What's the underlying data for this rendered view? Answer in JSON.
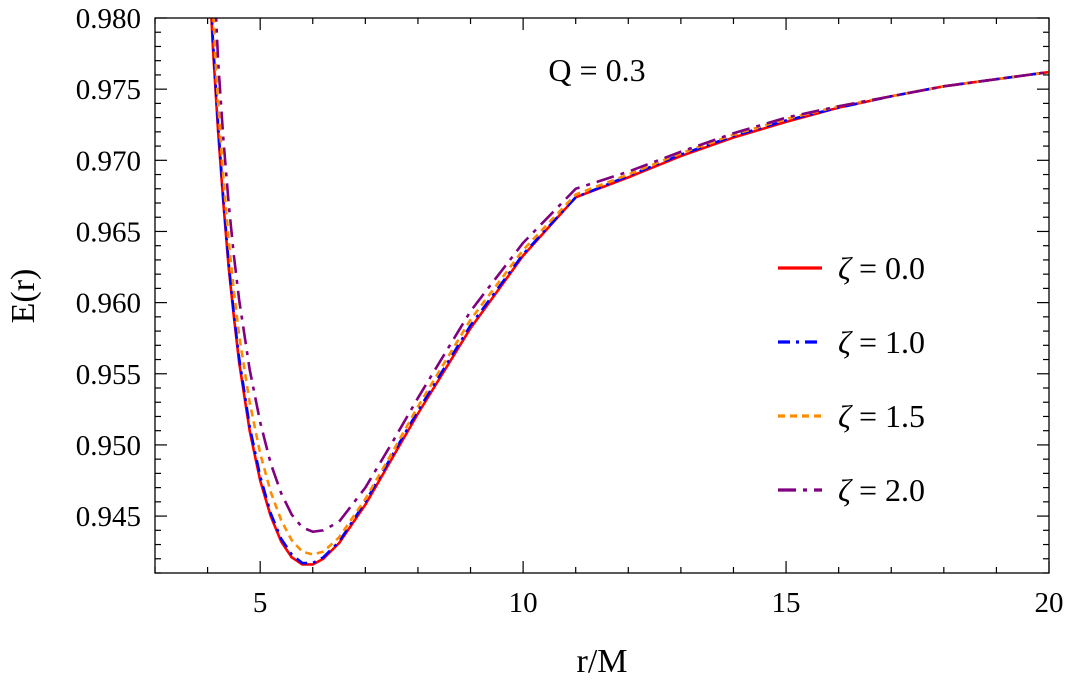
{
  "chart_data": {
    "type": "line",
    "title": "",
    "xlabel": "r/M",
    "ylabel": "E(r)",
    "xlim": [
      3.0,
      20.0
    ],
    "ylim": [
      0.941,
      0.98
    ],
    "x_ticks": [
      5,
      10,
      15,
      20
    ],
    "x_tick_labels": [
      "5",
      "10",
      "15",
      "20"
    ],
    "y_ticks": [
      0.945,
      0.95,
      0.955,
      0.96,
      0.965,
      0.97,
      0.975,
      0.98
    ],
    "y_tick_labels": [
      "0.945",
      "0.950",
      "0.955",
      "0.960",
      "0.965",
      "0.970",
      "0.975",
      "0.980"
    ],
    "annotation": "Q = 0.3",
    "legend_position": "right",
    "grid": false,
    "series": [
      {
        "name": "ζ = 0.0",
        "symbol": "ζ",
        "value_label": " = 0.0",
        "color": "#ff0000",
        "dash": "solid",
        "x": [
          4.06,
          4.1,
          4.2,
          4.3,
          4.4,
          4.5,
          4.6,
          4.8,
          5.0,
          5.2,
          5.4,
          5.6,
          5.8,
          6.0,
          6.2,
          6.5,
          7.0,
          7.5,
          8.0,
          9.0,
          10.0,
          11.0,
          12.0,
          13.0,
          14.0,
          15.0,
          16.0,
          17.0,
          18.0,
          19.0,
          20.0
        ],
        "y": [
          0.981,
          0.978,
          0.972,
          0.967,
          0.9625,
          0.959,
          0.9558,
          0.951,
          0.9475,
          0.945,
          0.9432,
          0.9421,
          0.9416,
          0.9416,
          0.942,
          0.9431,
          0.9458,
          0.949,
          0.9522,
          0.9582,
          0.9633,
          0.9674,
          0.9688,
          0.9703,
          0.9716,
          0.9727,
          0.9737,
          0.9745,
          0.9752,
          0.9757,
          0.9762
        ]
      },
      {
        "name": "ζ = 1.0",
        "symbol": "ζ",
        "value_label": " = 1.0",
        "color": "#0000ff",
        "dash": "dash-dot",
        "x": [
          4.07,
          4.1,
          4.2,
          4.3,
          4.4,
          4.5,
          4.6,
          4.8,
          5.0,
          5.2,
          5.4,
          5.6,
          5.8,
          6.0,
          6.2,
          6.5,
          7.0,
          7.5,
          8.0,
          9.0,
          10.0,
          11.0,
          12.0,
          13.0,
          14.0,
          15.0,
          16.0,
          17.0,
          18.0,
          19.0,
          20.0
        ],
        "y": [
          0.981,
          0.9785,
          0.9725,
          0.9673,
          0.9628,
          0.9592,
          0.9561,
          0.9513,
          0.9478,
          0.9452,
          0.9434,
          0.9423,
          0.9417,
          0.9417,
          0.9421,
          0.9432,
          0.946,
          0.9492,
          0.9524,
          0.9584,
          0.9634,
          0.9674,
          0.9689,
          0.9704,
          0.9717,
          0.9728,
          0.9737,
          0.9745,
          0.9752,
          0.9757,
          0.9762
        ]
      },
      {
        "name": "ζ = 1.5",
        "symbol": "ζ",
        "value_label": " = 1.5",
        "color": "#ff8c00",
        "dash": "dotted",
        "x": [
          4.1,
          4.15,
          4.2,
          4.3,
          4.4,
          4.5,
          4.6,
          4.8,
          5.0,
          5.2,
          5.4,
          5.6,
          5.8,
          6.0,
          6.2,
          6.5,
          7.0,
          7.5,
          8.0,
          9.0,
          10.0,
          11.0,
          12.0,
          13.0,
          14.0,
          15.0,
          16.0,
          17.0,
          18.0,
          19.0,
          20.0
        ],
        "y": [
          0.981,
          0.977,
          0.974,
          0.9688,
          0.9644,
          0.9608,
          0.9577,
          0.953,
          0.9494,
          0.9467,
          0.9447,
          0.9433,
          0.9425,
          0.9423,
          0.9425,
          0.9435,
          0.9462,
          0.9494,
          0.9527,
          0.9588,
          0.9637,
          0.9676,
          0.969,
          0.9705,
          0.9718,
          0.9729,
          0.9738,
          0.9745,
          0.9752,
          0.9757,
          0.9762
        ]
      },
      {
        "name": "ζ = 2.0",
        "symbol": "ζ",
        "value_label": " = 2.0",
        "color": "#800080",
        "dash": "long-dash-dot",
        "x": [
          4.15,
          4.2,
          4.3,
          4.4,
          4.5,
          4.6,
          4.8,
          5.0,
          5.2,
          5.4,
          5.6,
          5.8,
          6.0,
          6.2,
          6.5,
          7.0,
          7.5,
          8.0,
          9.0,
          10.0,
          11.0,
          12.0,
          13.0,
          14.0,
          15.0,
          16.0,
          17.0,
          18.0,
          19.0,
          20.0
        ],
        "y": [
          0.981,
          0.977,
          0.9715,
          0.967,
          0.9633,
          0.9602,
          0.9553,
          0.9516,
          0.9487,
          0.9466,
          0.9451,
          0.9442,
          0.9439,
          0.944,
          0.9446,
          0.947,
          0.9501,
          0.9533,
          0.9594,
          0.9642,
          0.968,
          0.9692,
          0.9706,
          0.9719,
          0.973,
          0.9738,
          0.9745,
          0.9752,
          0.9757,
          0.9762
        ]
      }
    ]
  }
}
